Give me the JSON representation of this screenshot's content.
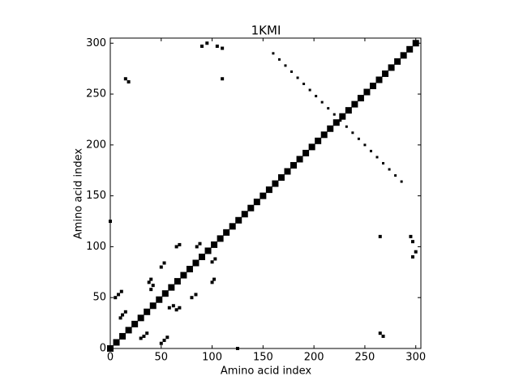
{
  "chart_data": {
    "type": "scatter",
    "title": "1KMI",
    "xlabel": "Amino acid index",
    "ylabel": "Amino acid index",
    "xlim": [
      0,
      305
    ],
    "ylim": [
      0,
      305
    ],
    "xticks": [
      0,
      50,
      100,
      150,
      200,
      250,
      300
    ],
    "yticks": [
      0,
      50,
      100,
      150,
      200,
      250,
      300
    ],
    "series": [
      {
        "color": "#000000",
        "marker_size": 8,
        "x": [
          0,
          6,
          12,
          18,
          24,
          30,
          36,
          42,
          48,
          54,
          60,
          66,
          72,
          78,
          84,
          90,
          96,
          102,
          108,
          114,
          120,
          126,
          132,
          138,
          144,
          150,
          156,
          162,
          168,
          174,
          180,
          186,
          192,
          198,
          204,
          210,
          216,
          222,
          228,
          234,
          240,
          246,
          252,
          258,
          264,
          270,
          276,
          282,
          288,
          294,
          300
        ],
        "y": [
          0,
          6,
          12,
          18,
          24,
          30,
          36,
          42,
          48,
          54,
          60,
          66,
          72,
          78,
          84,
          90,
          96,
          102,
          108,
          114,
          120,
          126,
          132,
          138,
          144,
          150,
          156,
          162,
          168,
          174,
          180,
          186,
          192,
          198,
          204,
          210,
          216,
          222,
          228,
          234,
          240,
          246,
          252,
          258,
          264,
          270,
          276,
          282,
          288,
          294,
          300
        ]
      },
      {
        "color": "#000000",
        "marker_size": 3,
        "x": [
          160,
          166,
          172,
          178,
          184,
          190,
          196,
          202,
          208,
          214,
          220,
          226,
          232,
          238,
          244,
          250,
          256,
          262,
          268,
          274,
          280,
          286
        ],
        "y": [
          290,
          284,
          278,
          272,
          266,
          260,
          254,
          248,
          242,
          236,
          230,
          224,
          218,
          212,
          206,
          200,
          194,
          188,
          182,
          176,
          170,
          164
        ]
      },
      {
        "color": "#000000",
        "marker_size": 4,
        "x": [
          5,
          8,
          11,
          50,
          53,
          56,
          10,
          12,
          15,
          30,
          33,
          36,
          40,
          42,
          58,
          62,
          50,
          53,
          80,
          84,
          38,
          40,
          65,
          68,
          85,
          88,
          100,
          103,
          65,
          68,
          100,
          102,
          265,
          268,
          15,
          18,
          295,
          297,
          110,
          105,
          265,
          110,
          125,
          0,
          300,
          297,
          95,
          90
        ],
        "y": [
          50,
          53,
          56,
          5,
          8,
          11,
          30,
          33,
          36,
          10,
          12,
          15,
          58,
          62,
          40,
          42,
          80,
          84,
          50,
          53,
          65,
          68,
          38,
          40,
          100,
          103,
          85,
          88,
          100,
          102,
          65,
          68,
          15,
          12,
          265,
          262,
          110,
          105,
          295,
          297,
          110,
          265,
          0,
          125,
          95,
          90,
          300,
          297
        ]
      }
    ]
  }
}
